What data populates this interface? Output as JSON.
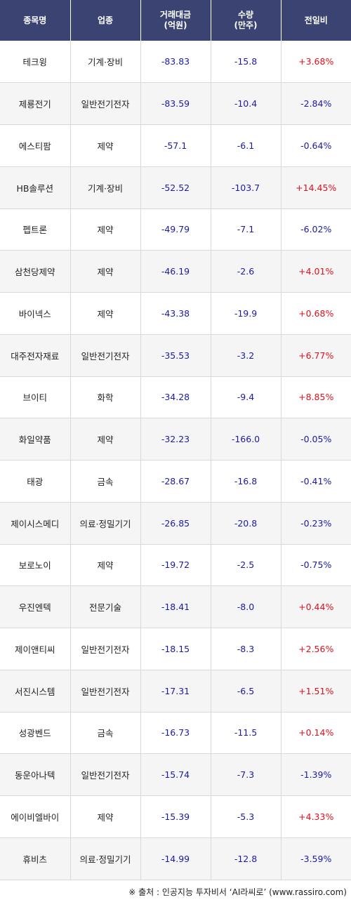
{
  "colors": {
    "header_bg": "#3b4372",
    "up": "#e0101d",
    "down": "#1a1aa8",
    "stripe": "#f5f5f5"
  },
  "headers": [
    "종목명",
    "업종",
    "거래대금\n(억원)",
    "수량\n(만주)",
    "전일비"
  ],
  "rows": [
    {
      "name": "테크윙",
      "sector": "기계·장비",
      "amount": "-83.83",
      "qty": "-15.8",
      "change": "+3.68%",
      "dir": "up"
    },
    {
      "name": "제룡전기",
      "sector": "일반전기전자",
      "amount": "-83.59",
      "qty": "-10.4",
      "change": "-2.84%",
      "dir": "down"
    },
    {
      "name": "에스티팜",
      "sector": "제약",
      "amount": "-57.1",
      "qty": "-6.1",
      "change": "-0.64%",
      "dir": "down"
    },
    {
      "name": "HB솔루션",
      "sector": "기계·장비",
      "amount": "-52.52",
      "qty": "-103.7",
      "change": "+14.45%",
      "dir": "up"
    },
    {
      "name": "펩트론",
      "sector": "제약",
      "amount": "-49.79",
      "qty": "-7.1",
      "change": "-6.02%",
      "dir": "down"
    },
    {
      "name": "삼천당제약",
      "sector": "제약",
      "amount": "-46.19",
      "qty": "-2.6",
      "change": "+4.01%",
      "dir": "up"
    },
    {
      "name": "바이넥스",
      "sector": "제약",
      "amount": "-43.38",
      "qty": "-19.9",
      "change": "+0.68%",
      "dir": "up"
    },
    {
      "name": "대주전자재료",
      "sector": "일반전기전자",
      "amount": "-35.53",
      "qty": "-3.2",
      "change": "+6.77%",
      "dir": "up"
    },
    {
      "name": "브이티",
      "sector": "화학",
      "amount": "-34.28",
      "qty": "-9.4",
      "change": "+8.85%",
      "dir": "up"
    },
    {
      "name": "화일약품",
      "sector": "제약",
      "amount": "-32.23",
      "qty": "-166.0",
      "change": "-0.05%",
      "dir": "down"
    },
    {
      "name": "태광",
      "sector": "금속",
      "amount": "-28.67",
      "qty": "-16.8",
      "change": "-0.41%",
      "dir": "down"
    },
    {
      "name": "제이시스메디",
      "sector": "의료·정밀기기",
      "amount": "-26.85",
      "qty": "-20.8",
      "change": "-0.23%",
      "dir": "down"
    },
    {
      "name": "보로노이",
      "sector": "제약",
      "amount": "-19.72",
      "qty": "-2.5",
      "change": "-0.75%",
      "dir": "down"
    },
    {
      "name": "우진엔텍",
      "sector": "전문기술",
      "amount": "-18.41",
      "qty": "-8.0",
      "change": "+0.44%",
      "dir": "up"
    },
    {
      "name": "제이앤티씨",
      "sector": "일반전기전자",
      "amount": "-18.15",
      "qty": "-8.3",
      "change": "+2.56%",
      "dir": "up"
    },
    {
      "name": "서진시스템",
      "sector": "일반전기전자",
      "amount": "-17.31",
      "qty": "-6.5",
      "change": "+1.51%",
      "dir": "up"
    },
    {
      "name": "성광벤드",
      "sector": "금속",
      "amount": "-16.73",
      "qty": "-11.5",
      "change": "+0.14%",
      "dir": "up"
    },
    {
      "name": "동운아나텍",
      "sector": "일반전기전자",
      "amount": "-15.74",
      "qty": "-7.3",
      "change": "-1.39%",
      "dir": "down"
    },
    {
      "name": "에이비엘바이",
      "sector": "제약",
      "amount": "-15.39",
      "qty": "-5.3",
      "change": "+4.33%",
      "dir": "up"
    },
    {
      "name": "휴비츠",
      "sector": "의료·정밀기기",
      "amount": "-14.99",
      "qty": "-12.8",
      "change": "-3.59%",
      "dir": "down"
    }
  ],
  "source": "※ 출처 : 인공지능 투자비서 ‘AI라씨로’ (www.rassiro.com)"
}
